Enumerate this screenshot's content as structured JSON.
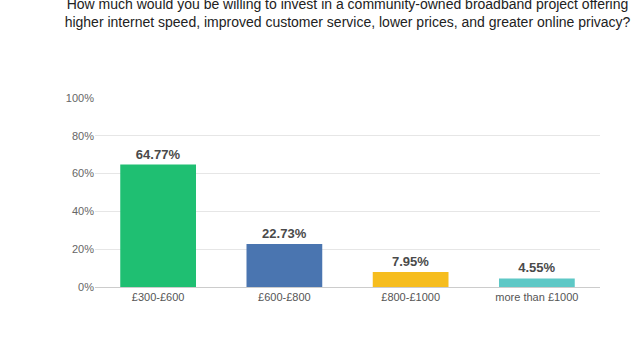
{
  "chart_data": {
    "type": "bar",
    "title": "How much would you be willing to invest in a community-owned broadband project offering\nhigher internet speed, improved customer service, lower prices, and greater online privacy?",
    "categories": [
      "£300-£600",
      "£600-£800",
      "£800-£1000",
      "more than £1000"
    ],
    "values": [
      64.77,
      22.73,
      7.95,
      4.55
    ],
    "value_labels": [
      "64.77%",
      "22.73%",
      "7.95%",
      "4.55%"
    ],
    "colors": [
      "#1fbf72",
      "#4a75b0",
      "#f6bd1e",
      "#5ec8c6"
    ],
    "ylim": [
      0,
      100
    ],
    "yticks": [
      {
        "value": 0,
        "label": "0%"
      },
      {
        "value": 20,
        "label": "20%"
      },
      {
        "value": 40,
        "label": "40%"
      },
      {
        "value": 60,
        "label": "60%"
      },
      {
        "value": 80,
        "label": "80%"
      },
      {
        "value": 100,
        "label": "100%"
      }
    ],
    "grid": true,
    "data_labels": true
  }
}
